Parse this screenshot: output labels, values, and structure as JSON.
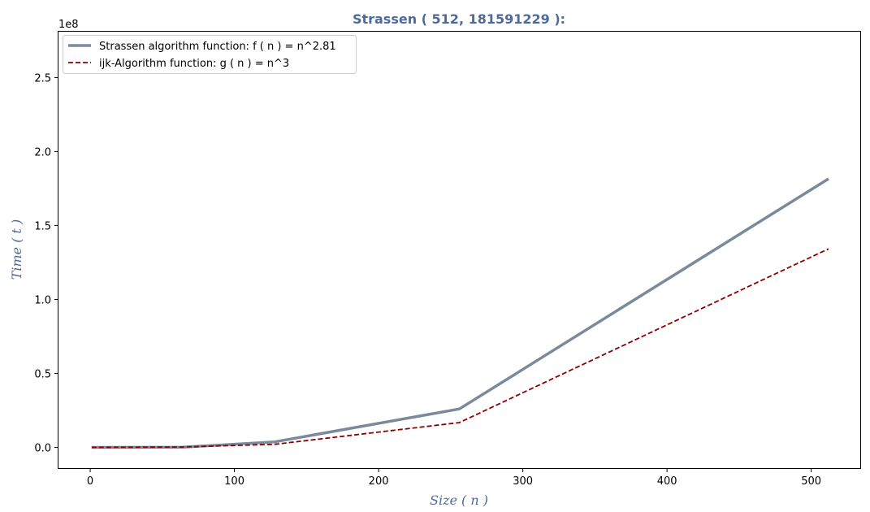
{
  "chart_data": {
    "type": "line",
    "title": "Strassen ( 512, 181591229 ):",
    "xlabel": "Size ( n )",
    "ylabel": "Time ( t )",
    "y_offset_label": "1e8",
    "xlim": [
      -22,
      534
    ],
    "ylim": [
      -14000000,
      281000000
    ],
    "x_ticks": [
      0,
      100,
      200,
      300,
      400,
      500
    ],
    "x_tick_labels": [
      "0",
      "100",
      "200",
      "300",
      "400",
      "500"
    ],
    "y_ticks": [
      0,
      50000000,
      100000000,
      150000000,
      200000000,
      250000000
    ],
    "y_tick_labels": [
      "0.0",
      "0.5",
      "1.0",
      "1.5",
      "2.0",
      "2.5"
    ],
    "grid": false,
    "legend_position": "upper-left",
    "series": [
      {
        "name": "Strassen algorithm function: f ( n ) = n^2.81",
        "color": "#7a8a9c",
        "style": "solid",
        "x": [
          1,
          64,
          128,
          256,
          512
        ],
        "y": [
          1,
          120000,
          3750000,
          26000000,
          181591229
        ]
      },
      {
        "name": "ijk-Algorithm function: g ( n ) = n^3",
        "color": "#8b0000",
        "style": "dashed",
        "x": [
          1,
          64,
          128,
          256,
          512
        ],
        "y": [
          1,
          262144,
          2097152,
          16777216,
          134217728
        ]
      }
    ]
  }
}
